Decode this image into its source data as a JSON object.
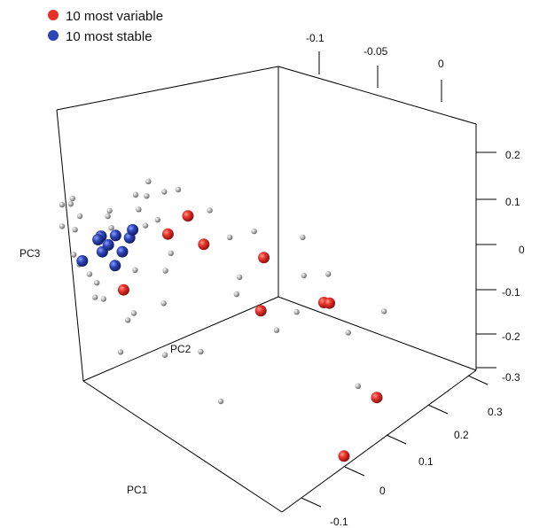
{
  "chart_data": {
    "type": "scatter",
    "dimensions": 3,
    "axes": {
      "x": {
        "label": "PC1",
        "ticks": [
          "-0.1",
          "0",
          "0.1",
          "0.2",
          "0.3"
        ]
      },
      "y": {
        "label": "PC2",
        "ticks": [
          "-0.1",
          "-0.05",
          "0"
        ]
      },
      "z": {
        "label": "PC3",
        "ticks": [
          "0.2",
          "0.1",
          "0",
          "-0.1",
          "-0.2",
          "-0.3"
        ]
      }
    },
    "legend": {
      "placement": "top-left",
      "entries": [
        {
          "label": "10 most variable",
          "color": "#e8302a"
        },
        {
          "label": "10 most stable",
          "color": "#2e45b8"
        }
      ]
    },
    "colors": {
      "variable": "#e8302a",
      "stable": "#2e45b8",
      "other": "#b8b8b8"
    },
    "series": [
      {
        "key": "variable",
        "points": [
          [
            0.18,
            -0.02,
            0.05
          ],
          [
            0.12,
            -0.05,
            0.12
          ],
          [
            0.22,
            -0.03,
            0.08
          ],
          [
            0.05,
            -0.09,
            0.18
          ],
          [
            0.03,
            -0.1,
            0.13
          ],
          [
            0.14,
            -0.06,
            0.02
          ],
          [
            0.25,
            0.0,
            -0.12
          ],
          [
            0.2,
            -0.01,
            -0.28
          ],
          [
            -0.02,
            -0.12,
            -0.02
          ],
          [
            0.06,
            -0.08,
            0.12
          ]
        ]
      },
      {
        "key": "stable",
        "points": [
          [
            -0.1,
            -0.11,
            0.04
          ],
          [
            -0.08,
            -0.12,
            0.05
          ],
          [
            -0.06,
            -0.1,
            0.06
          ],
          [
            -0.12,
            -0.09,
            0.02
          ],
          [
            -0.09,
            -0.13,
            0.0
          ],
          [
            -0.07,
            -0.12,
            0.03
          ],
          [
            -0.05,
            -0.11,
            0.04
          ],
          [
            -0.11,
            -0.1,
            0.01
          ],
          [
            -0.08,
            -0.09,
            0.06
          ],
          [
            -0.04,
            -0.12,
            0.02
          ]
        ]
      },
      {
        "key": "other",
        "points": [
          [
            -0.14,
            -0.12,
            0.1
          ],
          [
            -0.12,
            -0.14,
            0.06
          ],
          [
            -0.1,
            -0.08,
            0.12
          ],
          [
            -0.08,
            -0.14,
            0.08
          ],
          [
            -0.06,
            -0.07,
            0.15
          ],
          [
            -0.02,
            -0.1,
            0.18
          ],
          [
            0.0,
            -0.08,
            0.2
          ],
          [
            0.02,
            -0.06,
            0.16
          ],
          [
            -0.03,
            -0.13,
            0.14
          ],
          [
            -0.13,
            -0.09,
            0.03
          ],
          [
            -0.11,
            -0.13,
            0.0
          ],
          [
            -0.09,
            -0.1,
            -0.02
          ],
          [
            -0.07,
            -0.14,
            0.01
          ],
          [
            -0.05,
            -0.09,
            0.09
          ],
          [
            -0.04,
            -0.13,
            -0.05
          ],
          [
            -0.02,
            -0.11,
            0.02
          ],
          [
            0.01,
            -0.09,
            0.07
          ],
          [
            0.03,
            -0.07,
            0.1
          ],
          [
            -0.15,
            -0.11,
            0.05
          ],
          [
            -0.14,
            -0.13,
            0.09
          ],
          [
            -0.12,
            -0.07,
            0.07
          ],
          [
            -0.1,
            -0.12,
            -0.04
          ],
          [
            -0.08,
            -0.11,
            0.11
          ],
          [
            -0.06,
            -0.13,
            -0.06
          ],
          [
            -0.03,
            -0.08,
            0.0
          ],
          [
            -0.01,
            -0.12,
            -0.08
          ],
          [
            0.02,
            -0.1,
            -0.03
          ],
          [
            0.04,
            -0.05,
            0.11
          ],
          [
            0.07,
            -0.04,
            0.14
          ],
          [
            0.09,
            -0.06,
            0.06
          ],
          [
            0.16,
            -0.03,
            0.1
          ],
          [
            0.19,
            -0.02,
            0.12
          ],
          [
            0.17,
            -0.04,
            0.03
          ],
          [
            0.21,
            -0.01,
            0.0
          ],
          [
            0.24,
            0.01,
            0.06
          ],
          [
            0.26,
            -0.02,
            -0.08
          ],
          [
            0.15,
            -0.05,
            -0.02
          ],
          [
            0.11,
            -0.07,
            0.04
          ],
          [
            0.13,
            -0.02,
            0.16
          ],
          [
            0.08,
            -0.09,
            -0.1
          ],
          [
            -0.09,
            -0.14,
            0.13
          ],
          [
            -0.11,
            -0.11,
            -0.07
          ],
          [
            0.05,
            -0.11,
            -0.12
          ],
          [
            0.1,
            -0.08,
            -0.2
          ],
          [
            -0.05,
            -0.1,
            -0.1
          ],
          [
            0.0,
            -0.13,
            -0.14
          ],
          [
            0.06,
            -0.12,
            0.19
          ],
          [
            -0.07,
            -0.08,
            0.17
          ]
        ]
      }
    ]
  }
}
